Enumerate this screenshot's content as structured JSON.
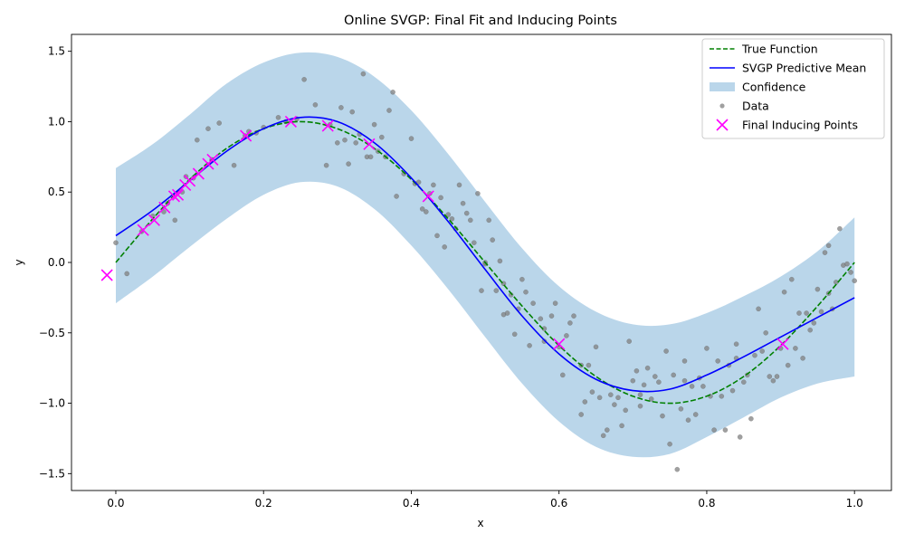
{
  "chart_data": {
    "type": "line",
    "title": "Online SVGP: Final Fit and Inducing Points",
    "xlabel": "x",
    "ylabel": "y",
    "xlim": [
      -0.06,
      1.05
    ],
    "ylim": [
      -1.62,
      1.62
    ],
    "xticks": [
      0.0,
      0.2,
      0.4,
      0.6,
      0.8,
      1.0
    ],
    "xtick_labels": [
      "0.0",
      "0.2",
      "0.4",
      "0.6",
      "0.8",
      "1.0"
    ],
    "yticks": [
      1.5,
      1.0,
      0.5,
      0.0,
      -0.5,
      -1.0,
      -1.5
    ],
    "ytick_labels": [
      "1.5",
      "1.0",
      "0.5",
      "0.0",
      "−0.5",
      "−1.0",
      "−1.5"
    ],
    "grid": false,
    "legend_position": "top-right",
    "colors": {
      "true_function": "#008000",
      "predictive_mean": "#0000ff",
      "confidence": "#bad6ea",
      "data": "#808080",
      "inducing": "#ff00ff"
    },
    "legend": [
      {
        "label": "True Function",
        "kind": "dashed-line"
      },
      {
        "label": "SVGP Predictive Mean",
        "kind": "line"
      },
      {
        "label": "Confidence",
        "kind": "patch"
      },
      {
        "label": "Data",
        "kind": "dot"
      },
      {
        "label": "Final Inducing Points",
        "kind": "cross"
      }
    ],
    "series": [
      {
        "name": "True Function",
        "x": [
          0.0,
          0.05,
          0.1,
          0.15,
          0.2,
          0.25,
          0.3,
          0.35,
          0.4,
          0.45,
          0.5,
          0.55,
          0.6,
          0.65,
          0.7,
          0.75,
          0.8,
          0.85,
          0.9,
          0.95,
          1.0
        ],
        "y": [
          0.0,
          0.31,
          0.59,
          0.81,
          0.95,
          1.0,
          0.95,
          0.81,
          0.59,
          0.31,
          0.0,
          -0.31,
          -0.59,
          -0.81,
          -0.95,
          -1.0,
          -0.95,
          -0.81,
          -0.59,
          -0.31,
          0.0
        ]
      },
      {
        "name": "SVGP Predictive Mean",
        "x": [
          0.0,
          0.05,
          0.1,
          0.15,
          0.2,
          0.25,
          0.3,
          0.35,
          0.4,
          0.45,
          0.5,
          0.55,
          0.6,
          0.65,
          0.7,
          0.75,
          0.8,
          0.85,
          0.9,
          0.95,
          1.0
        ],
        "y": [
          0.19,
          0.37,
          0.58,
          0.79,
          0.95,
          1.03,
          1.0,
          0.85,
          0.6,
          0.29,
          -0.05,
          -0.38,
          -0.65,
          -0.83,
          -0.91,
          -0.9,
          -0.8,
          -0.67,
          -0.53,
          -0.39,
          -0.25
        ]
      },
      {
        "name": "Confidence",
        "x": [
          0.0,
          0.05,
          0.1,
          0.15,
          0.2,
          0.25,
          0.3,
          0.35,
          0.4,
          0.45,
          0.5,
          0.55,
          0.6,
          0.65,
          0.7,
          0.75,
          0.8,
          0.85,
          0.9,
          0.95,
          1.0
        ],
        "upper": [
          0.67,
          0.84,
          1.05,
          1.27,
          1.42,
          1.49,
          1.46,
          1.32,
          1.08,
          0.77,
          0.43,
          0.1,
          -0.17,
          -0.35,
          -0.44,
          -0.44,
          -0.36,
          -0.24,
          -0.1,
          0.08,
          0.32
        ],
        "lower": [
          -0.29,
          -0.1,
          0.11,
          0.31,
          0.48,
          0.57,
          0.54,
          0.38,
          0.12,
          -0.19,
          -0.53,
          -0.86,
          -1.13,
          -1.31,
          -1.38,
          -1.36,
          -1.24,
          -1.1,
          -0.96,
          -0.86,
          -0.81
        ]
      },
      {
        "name": "Data",
        "points": [
          [
            0.0,
            0.14
          ],
          [
            0.015,
            -0.08
          ],
          [
            0.035,
            0.22
          ],
          [
            0.05,
            0.33
          ],
          [
            0.065,
            0.36
          ],
          [
            0.08,
            0.3
          ],
          [
            0.095,
            0.61
          ],
          [
            0.11,
            0.87
          ],
          [
            0.125,
            0.95
          ],
          [
            0.14,
            0.99
          ],
          [
            0.16,
            0.69
          ],
          [
            0.18,
            0.93
          ],
          [
            0.2,
            0.96
          ],
          [
            0.22,
            1.03
          ],
          [
            0.245,
            1.02
          ],
          [
            0.255,
            1.3
          ],
          [
            0.27,
            1.12
          ],
          [
            0.285,
            0.69
          ],
          [
            0.3,
            0.85
          ],
          [
            0.305,
            1.1
          ],
          [
            0.31,
            0.87
          ],
          [
            0.315,
            0.7
          ],
          [
            0.32,
            1.07
          ],
          [
            0.33,
            0.91
          ],
          [
            0.335,
            1.34
          ],
          [
            0.34,
            0.75
          ],
          [
            0.35,
            0.98
          ],
          [
            0.355,
            0.79
          ],
          [
            0.36,
            0.89
          ],
          [
            0.37,
            1.08
          ],
          [
            0.375,
            1.21
          ],
          [
            0.38,
            0.47
          ],
          [
            0.39,
            0.63
          ],
          [
            0.4,
            0.88
          ],
          [
            0.405,
            0.56
          ],
          [
            0.41,
            0.57
          ],
          [
            0.415,
            0.38
          ],
          [
            0.42,
            0.36
          ],
          [
            0.43,
            0.55
          ],
          [
            0.435,
            0.19
          ],
          [
            0.44,
            0.46
          ],
          [
            0.445,
            0.11
          ],
          [
            0.45,
            0.34
          ],
          [
            0.46,
            0.24
          ],
          [
            0.465,
            0.55
          ],
          [
            0.47,
            0.42
          ],
          [
            0.475,
            0.35
          ],
          [
            0.485,
            0.14
          ],
          [
            0.49,
            0.49
          ],
          [
            0.495,
            -0.2
          ],
          [
            0.5,
            -0.01
          ],
          [
            0.505,
            0.3
          ],
          [
            0.51,
            0.16
          ],
          [
            0.515,
            -0.2
          ],
          [
            0.52,
            0.01
          ],
          [
            0.525,
            -0.37
          ],
          [
            0.53,
            -0.36
          ],
          [
            0.535,
            -0.23
          ],
          [
            0.54,
            -0.51
          ],
          [
            0.55,
            -0.12
          ],
          [
            0.555,
            -0.21
          ],
          [
            0.56,
            -0.59
          ],
          [
            0.565,
            -0.29
          ],
          [
            0.575,
            -0.4
          ],
          [
            0.58,
            -0.56
          ],
          [
            0.59,
            -0.38
          ],
          [
            0.595,
            -0.29
          ],
          [
            0.6,
            -0.6
          ],
          [
            0.605,
            -0.8
          ],
          [
            0.61,
            -0.52
          ],
          [
            0.615,
            -0.43
          ],
          [
            0.62,
            -0.38
          ],
          [
            0.63,
            -1.08
          ],
          [
            0.635,
            -0.99
          ],
          [
            0.64,
            -0.73
          ],
          [
            0.645,
            -0.92
          ],
          [
            0.65,
            -0.6
          ],
          [
            0.655,
            -0.96
          ],
          [
            0.66,
            -1.23
          ],
          [
            0.665,
            -1.19
          ],
          [
            0.67,
            -0.94
          ],
          [
            0.675,
            -1.01
          ],
          [
            0.68,
            -0.96
          ],
          [
            0.685,
            -1.16
          ],
          [
            0.69,
            -1.05
          ],
          [
            0.695,
            -0.56
          ],
          [
            0.7,
            -0.84
          ],
          [
            0.705,
            -0.77
          ],
          [
            0.71,
            -1.02
          ],
          [
            0.715,
            -0.87
          ],
          [
            0.72,
            -0.75
          ],
          [
            0.725,
            -0.97
          ],
          [
            0.73,
            -0.81
          ],
          [
            0.735,
            -0.85
          ],
          [
            0.74,
            -1.09
          ],
          [
            0.745,
            -0.63
          ],
          [
            0.75,
            -1.29
          ],
          [
            0.755,
            -0.8
          ],
          [
            0.76,
            -1.47
          ],
          [
            0.765,
            -1.04
          ],
          [
            0.77,
            -0.84
          ],
          [
            0.775,
            -1.12
          ],
          [
            0.78,
            -0.88
          ],
          [
            0.785,
            -1.08
          ],
          [
            0.79,
            -0.82
          ],
          [
            0.795,
            -0.88
          ],
          [
            0.8,
            -0.61
          ],
          [
            0.805,
            -0.95
          ],
          [
            0.81,
            -1.19
          ],
          [
            0.815,
            -0.7
          ],
          [
            0.82,
            -0.95
          ],
          [
            0.825,
            -1.19
          ],
          [
            0.83,
            -0.73
          ],
          [
            0.835,
            -0.91
          ],
          [
            0.84,
            -0.58
          ],
          [
            0.845,
            -1.24
          ],
          [
            0.85,
            -0.85
          ],
          [
            0.855,
            -0.8
          ],
          [
            0.86,
            -1.11
          ],
          [
            0.865,
            -0.66
          ],
          [
            0.87,
            -0.33
          ],
          [
            0.875,
            -0.63
          ],
          [
            0.88,
            -0.5
          ],
          [
            0.885,
            -0.81
          ],
          [
            0.89,
            -0.84
          ],
          [
            0.895,
            -0.81
          ],
          [
            0.9,
            -0.61
          ],
          [
            0.905,
            -0.21
          ],
          [
            0.91,
            -0.73
          ],
          [
            0.915,
            -0.12
          ],
          [
            0.92,
            -0.61
          ],
          [
            0.925,
            -0.36
          ],
          [
            0.93,
            -0.68
          ],
          [
            0.935,
            -0.36
          ],
          [
            0.94,
            -0.48
          ],
          [
            0.945,
            -0.43
          ],
          [
            0.95,
            -0.19
          ],
          [
            0.955,
            -0.35
          ],
          [
            0.96,
            0.07
          ],
          [
            0.965,
            -0.22
          ],
          [
            0.97,
            -0.33
          ],
          [
            0.975,
            -0.14
          ],
          [
            0.98,
            0.24
          ],
          [
            0.985,
            -0.02
          ],
          [
            0.99,
            -0.01
          ],
          [
            0.995,
            -0.07
          ],
          [
            1.0,
            -0.13
          ],
          [
            0.965,
            0.12
          ],
          [
            0.84,
            -0.68
          ],
          [
            0.77,
            -0.7
          ],
          [
            0.71,
            -0.94
          ],
          [
            0.63,
            -0.73
          ],
          [
            0.58,
            -0.47
          ],
          [
            0.545,
            -0.33
          ],
          [
            0.525,
            -0.15
          ],
          [
            0.5,
            0.0
          ],
          [
            0.48,
            0.3
          ],
          [
            0.455,
            0.31
          ],
          [
            0.425,
            0.49
          ],
          [
            0.365,
            0.75
          ],
          [
            0.345,
            0.75
          ],
          [
            0.325,
            0.85
          ],
          [
            0.29,
            0.98
          ],
          [
            0.23,
            1.0
          ],
          [
            0.19,
            0.92
          ],
          [
            0.175,
            0.9
          ],
          [
            0.13,
            0.73
          ],
          [
            0.105,
            0.6
          ],
          [
            0.09,
            0.5
          ],
          [
            0.07,
            0.42
          ]
        ]
      },
      {
        "name": "Final Inducing Points",
        "points": [
          [
            -0.012,
            -0.09
          ],
          [
            0.037,
            0.23
          ],
          [
            0.052,
            0.3
          ],
          [
            0.066,
            0.39
          ],
          [
            0.079,
            0.47
          ],
          [
            0.084,
            0.48
          ],
          [
            0.094,
            0.55
          ],
          [
            0.1,
            0.58
          ],
          [
            0.112,
            0.63
          ],
          [
            0.125,
            0.7
          ],
          [
            0.131,
            0.73
          ],
          [
            0.176,
            0.9
          ],
          [
            0.237,
            1.0
          ],
          [
            0.287,
            0.97
          ],
          [
            0.343,
            0.84
          ],
          [
            0.423,
            0.47
          ],
          [
            0.6,
            -0.58
          ],
          [
            0.903,
            -0.58
          ]
        ]
      }
    ]
  }
}
